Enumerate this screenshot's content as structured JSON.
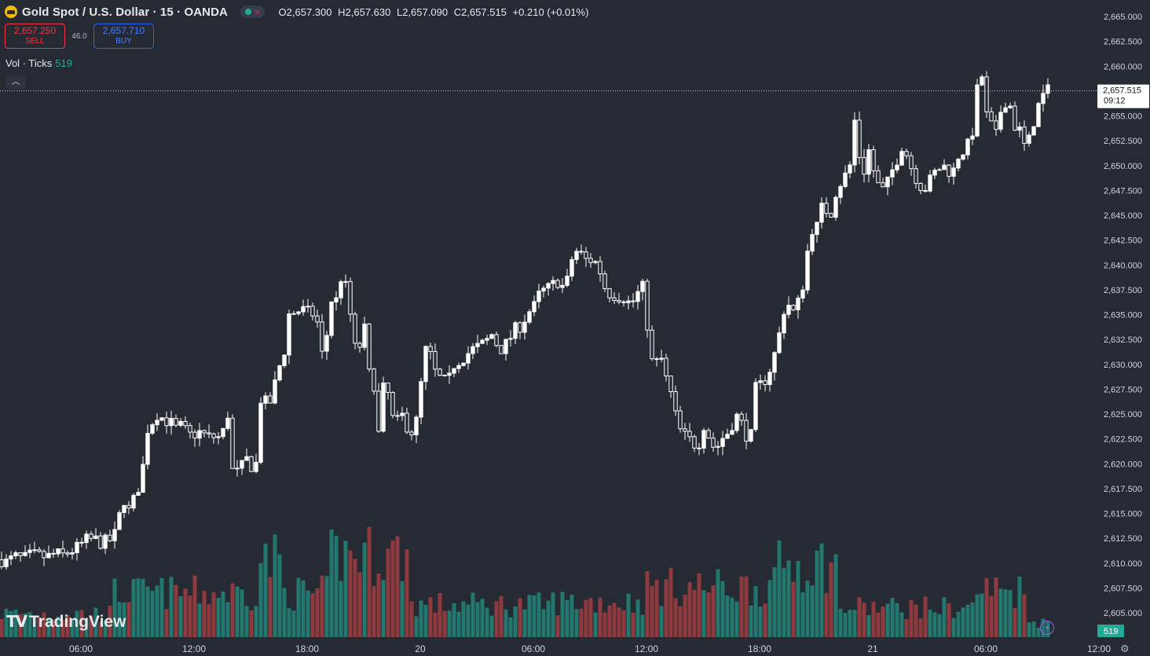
{
  "header": {
    "title": "Gold Spot / U.S. Dollar · 15 · OANDA",
    "ohlc": {
      "o": "O2,657.300",
      "h": "H2,657.630",
      "l": "L2,657.090",
      "c": "C2,657.515",
      "chg": "+0.210 (+0.01%)"
    }
  },
  "trade": {
    "sell_price": "2,657.250",
    "sell_label": "SELL",
    "spread": "46.0",
    "buy_price": "2,657.710",
    "buy_label": "BUY"
  },
  "volume_indicator": {
    "label": "Vol · Ticks",
    "value": "519"
  },
  "branding": {
    "logo_text": "TradingView"
  },
  "colors": {
    "background": "#262a33",
    "up_volume": "#22786e",
    "down_volume": "#8e3a3e",
    "candle": "#ffffff",
    "text": "#d1d4dc"
  },
  "chart_data": {
    "type": "candlestick",
    "y_ticks": [
      "2,665.000",
      "2,662.500",
      "2,660.000",
      "2,657.500",
      "2,655.000",
      "2,652.500",
      "2,650.000",
      "2,647.500",
      "2,645.000",
      "2,642.500",
      "2,640.000",
      "2,637.500",
      "2,635.000",
      "2,632.500",
      "2,630.000",
      "2,627.500",
      "2,625.000",
      "2,622.500",
      "2,620.000",
      "2,617.500",
      "2,615.000",
      "2,612.500",
      "2,610.000",
      "2,607.500",
      "2,605.000"
    ],
    "ylim": [
      2604,
      2666
    ],
    "x_ticks": [
      "06:00",
      "12:00",
      "18:00",
      "20",
      "06:00",
      "12:00",
      "18:00",
      "21",
      "06:00",
      "12:00"
    ],
    "last_price": "2,657.515",
    "countdown": "09:12",
    "volume_last": "519",
    "path": [
      [
        0,
        2610.5
      ],
      [
        6,
        2610.0
      ],
      [
        12,
        2610.3
      ],
      [
        20,
        2610.6
      ],
      [
        30,
        2610.4
      ],
      [
        40,
        2610.8
      ],
      [
        50,
        2610.7
      ],
      [
        60,
        2610.6
      ],
      [
        70,
        2610.9
      ],
      [
        80,
        2610.8
      ],
      [
        90,
        2611.2
      ],
      [
        100,
        2611.6
      ],
      [
        110,
        2612.3
      ],
      [
        120,
        2612.4
      ],
      [
        130,
        2612.0
      ],
      [
        140,
        2612.3
      ],
      [
        150,
        2613.2
      ],
      [
        155,
        2617.0
      ],
      [
        165,
        2615.0
      ],
      [
        172,
        2616.8
      ],
      [
        180,
        2618.5
      ],
      [
        188,
        2623.5
      ],
      [
        200,
        2625.0
      ],
      [
        208,
        2624.5
      ],
      [
        216,
        2624.2
      ],
      [
        224,
        2623.5
      ],
      [
        232,
        2623.8
      ],
      [
        240,
        2622.8
      ],
      [
        248,
        2623.0
      ],
      [
        256,
        2623.2
      ],
      [
        264,
        2622.6
      ],
      [
        272,
        2622.7
      ],
      [
        282,
        2622.6
      ],
      [
        290,
        2625.0
      ],
      [
        296,
        2619.3
      ],
      [
        305,
        2619.0
      ],
      [
        312,
        2620.6
      ],
      [
        320,
        2619.8
      ],
      [
        326,
        2620.0
      ],
      [
        332,
        2626.5
      ],
      [
        340,
        2626.0
      ],
      [
        348,
        2626.5
      ],
      [
        352,
        2629.5
      ],
      [
        360,
        2630.2
      ],
      [
        368,
        2635.0
      ],
      [
        376,
        2635.3
      ],
      [
        384,
        2635.5
      ],
      [
        392,
        2635.2
      ],
      [
        402,
        2635.0
      ],
      [
        408,
        2632.5
      ],
      [
        412,
        2629.5
      ],
      [
        420,
        2636.5
      ],
      [
        428,
        2636.4
      ],
      [
        436,
        2639.5
      ],
      [
        444,
        2636.0
      ],
      [
        450,
        2633.0
      ],
      [
        455,
        2629.5
      ],
      [
        462,
        2635.0
      ],
      [
        470,
        2629.0
      ],
      [
        476,
        2628.0
      ],
      [
        482,
        2623.0
      ],
      [
        488,
        2627.5
      ],
      [
        494,
        2627.0
      ],
      [
        500,
        2624.5
      ],
      [
        506,
        2624.2
      ],
      [
        512,
        2624.8
      ],
      [
        520,
        2623.5
      ],
      [
        528,
        2623.0
      ],
      [
        536,
        2628.0
      ],
      [
        544,
        2632.5
      ],
      [
        550,
        2630.0
      ],
      [
        556,
        2628.8
      ],
      [
        562,
        2628.5
      ],
      [
        570,
        2628.0
      ],
      [
        578,
        2630.0
      ],
      [
        586,
        2630.5
      ],
      [
        594,
        2631.0
      ],
      [
        602,
        2631.5
      ],
      [
        610,
        2631.8
      ],
      [
        618,
        2632.2
      ],
      [
        626,
        2633.0
      ],
      [
        634,
        2631.8
      ],
      [
        640,
        2631.5
      ],
      [
        648,
        2632.5
      ],
      [
        656,
        2633.5
      ],
      [
        664,
        2634.0
      ],
      [
        672,
        2635.2
      ],
      [
        680,
        2635.8
      ],
      [
        688,
        2637.3
      ],
      [
        696,
        2637.5
      ],
      [
        704,
        2638.0
      ],
      [
        712,
        2638.5
      ],
      [
        718,
        2637.5
      ],
      [
        724,
        2638.8
      ],
      [
        730,
        2641.5
      ],
      [
        738,
        2641.2
      ],
      [
        746,
        2640.5
      ],
      [
        754,
        2640.5
      ],
      [
        762,
        2640.0
      ],
      [
        768,
        2638.0
      ],
      [
        775,
        2637.2
      ],
      [
        782,
        2637.0
      ],
      [
        790,
        2636.8
      ],
      [
        796,
        2636.7
      ],
      [
        802,
        2636.0
      ],
      [
        808,
        2636.5
      ],
      [
        816,
        2637.8
      ],
      [
        822,
        2637.5
      ],
      [
        826,
        2630.5
      ],
      [
        834,
        2630.0
      ],
      [
        842,
        2630.5
      ],
      [
        848,
        2628.5
      ],
      [
        856,
        2626.5
      ],
      [
        862,
        2624.0
      ],
      [
        868,
        2623.0
      ],
      [
        876,
        2622.5
      ],
      [
        884,
        2622.0
      ],
      [
        890,
        2622.2
      ],
      [
        898,
        2624.5
      ],
      [
        904,
        2622.0
      ],
      [
        912,
        2621.5
      ],
      [
        918,
        2622.5
      ],
      [
        924,
        2622.8
      ],
      [
        932,
        2624.0
      ],
      [
        940,
        2625.0
      ],
      [
        948,
        2623.0
      ],
      [
        956,
        2622.8
      ],
      [
        962,
        2627.5
      ],
      [
        970,
        2628.0
      ],
      [
        978,
        2629.0
      ],
      [
        984,
        2630.5
      ],
      [
        990,
        2632.0
      ],
      [
        996,
        2635.0
      ],
      [
        1002,
        2636.5
      ],
      [
        1008,
        2635.0
      ],
      [
        1014,
        2635.8
      ],
      [
        1020,
        2637.0
      ],
      [
        1026,
        2640.0
      ],
      [
        1032,
        2644.0
      ],
      [
        1038,
        2643.0
      ],
      [
        1044,
        2645.5
      ],
      [
        1050,
        2646.0
      ],
      [
        1056,
        2644.5
      ],
      [
        1062,
        2647.0
      ],
      [
        1068,
        2648.0
      ],
      [
        1076,
        2649.0
      ],
      [
        1082,
        2650.0
      ],
      [
        1088,
        2654.5
      ],
      [
        1094,
        2651.0
      ],
      [
        1100,
        2649.5
      ],
      [
        1106,
        2651.5
      ],
      [
        1112,
        2649.5
      ],
      [
        1118,
        2648.0
      ],
      [
        1124,
        2647.5
      ],
      [
        1132,
        2648.5
      ],
      [
        1138,
        2650.0
      ],
      [
        1144,
        2651.0
      ],
      [
        1150,
        2652.5
      ],
      [
        1156,
        2650.5
      ],
      [
        1162,
        2649.5
      ],
      [
        1168,
        2648.5
      ],
      [
        1176,
        2647.5
      ],
      [
        1184,
        2648.5
      ],
      [
        1192,
        2649.5
      ],
      [
        1200,
        2650.0
      ],
      [
        1208,
        2649.5
      ],
      [
        1214,
        2649.5
      ],
      [
        1220,
        2651.0
      ],
      [
        1226,
        2651.5
      ],
      [
        1232,
        2652.0
      ],
      [
        1238,
        2653.5
      ],
      [
        1244,
        2657.5
      ],
      [
        1250,
        2659.0
      ],
      [
        1256,
        2655.0
      ],
      [
        1262,
        2654.0
      ],
      [
        1268,
        2653.0
      ],
      [
        1274,
        2655.5
      ],
      [
        1280,
        2656.5
      ],
      [
        1286,
        2656.0
      ],
      [
        1292,
        2654.0
      ],
      [
        1298,
        2653.5
      ],
      [
        1304,
        2652.0
      ],
      [
        1310,
        2652.5
      ],
      [
        1316,
        2654.5
      ],
      [
        1322,
        2656.0
      ],
      [
        1328,
        2657.0
      ],
      [
        1334,
        2657.5
      ]
    ]
  }
}
